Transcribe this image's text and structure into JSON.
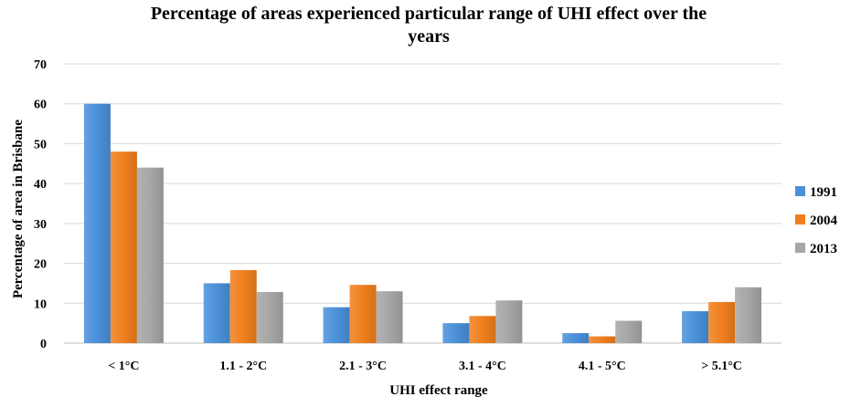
{
  "chart_data": {
    "type": "bar",
    "title_lines": [
      "Percentage of areas experienced particular  range of UHI effect over the",
      "years"
    ],
    "xlabel": "UHI effect range",
    "ylabel": "Percentage of area  in Brisbane",
    "categories": [
      "< 1°C",
      "1.1 - 2°C",
      "2.1 - 3°C",
      "3.1 - 4°C",
      "4.1 - 5°C",
      "> 5.1°C"
    ],
    "series": [
      {
        "name": "1991",
        "color": "#4a90d9",
        "values": [
          60,
          15,
          9,
          5,
          2.5,
          8
        ]
      },
      {
        "name": "2004",
        "color": "#f07f1d",
        "values": [
          48,
          18.3,
          14.6,
          6.8,
          1.7,
          10.3
        ]
      },
      {
        "name": "2013",
        "color": "#a6a6a6",
        "values": [
          44,
          12.8,
          13,
          10.7,
          5.6,
          14
        ]
      }
    ],
    "ylim": [
      0,
      70
    ],
    "yticks": [
      0,
      10,
      20,
      30,
      40,
      50,
      60,
      70
    ],
    "grid": true,
    "legend_position": "right"
  }
}
